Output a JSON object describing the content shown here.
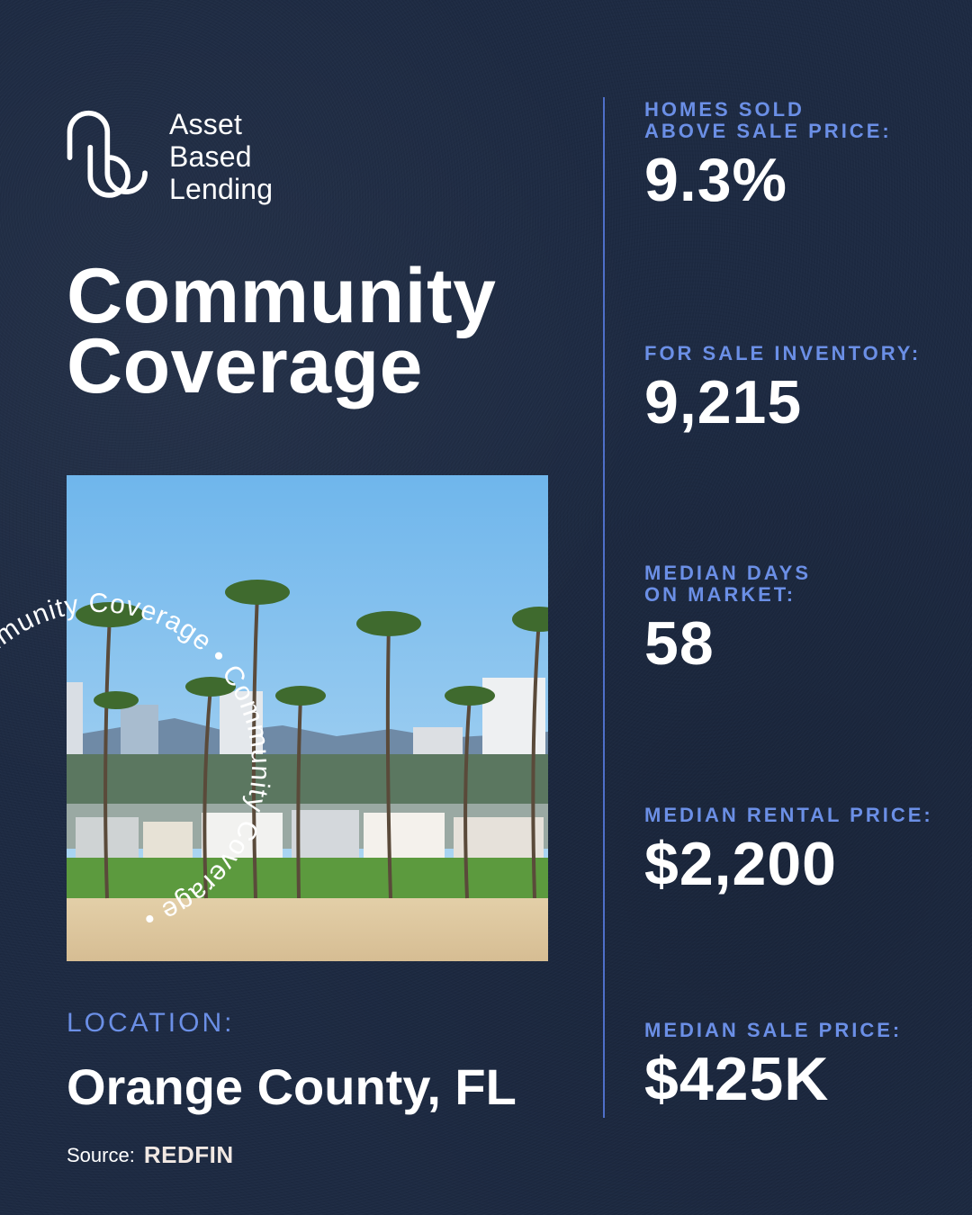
{
  "logo": {
    "line1": "Asset",
    "line2": "Based",
    "line3": "Lending"
  },
  "title": {
    "line1": "Community",
    "line2": "Coverage"
  },
  "circular_text": "Community Coverage • Community Coverage • ",
  "location": {
    "label": "LOCATION:",
    "value": "Orange County, FL"
  },
  "source": {
    "label": "Source:",
    "brand": "REDFIN"
  },
  "stats": [
    {
      "label_line1": "HOMES SOLD",
      "label_line2": "ABOVE SALE PRICE:",
      "value": "9.3%"
    },
    {
      "label_line1": "FOR SALE INVENTORY:",
      "label_line2": "",
      "value": "9,215"
    },
    {
      "label_line1": "MEDIAN DAYS",
      "label_line2": "ON MARKET:",
      "value": "58"
    },
    {
      "label_line1": "MEDIAN RENTAL PRICE:",
      "label_line2": "",
      "value": "$2,200"
    },
    {
      "label_line1": "MEDIAN SALE PRICE:",
      "label_line2": "",
      "value": "$425K"
    }
  ],
  "colors": {
    "background": "#1d2a42",
    "accent": "#6b8fe6",
    "divider": "#4e6fc9",
    "text": "#ffffff"
  }
}
